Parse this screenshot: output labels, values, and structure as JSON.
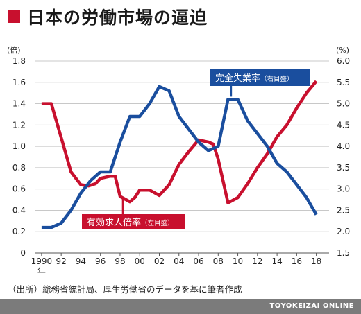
{
  "title": "日本の労働市場の逼迫",
  "source": "（出所）総務省統計局、厚生労働省のデータを基に筆者作成",
  "footer": "TOYOKEIZAI ONLINE",
  "chart_data": {
    "type": "line",
    "left_unit": "(倍)",
    "right_unit": "(%)",
    "year_suffix": "年",
    "left_ylim": [
      0,
      1.8
    ],
    "right_ylim": [
      1.5,
      6.0
    ],
    "left_ticks": [
      "0",
      "0.2",
      "0.4",
      "0.6",
      "0.8",
      "1.0",
      "1.2",
      "1.4",
      "1.6",
      "1.8"
    ],
    "right_ticks": [
      "1.5",
      "2.0",
      "2.5",
      "3.0",
      "3.5",
      "4.0",
      "4.5",
      "5.0",
      "5.5",
      "6.0"
    ],
    "x_ticks": [
      "1990",
      "92",
      "94",
      "96",
      "98",
      "00",
      "02",
      "04",
      "06",
      "08",
      "10",
      "12",
      "14",
      "16",
      "18"
    ],
    "x_tick_years": [
      1990,
      1992,
      1994,
      1996,
      1998,
      2000,
      2002,
      2004,
      2006,
      2008,
      2010,
      2012,
      2014,
      2016,
      2018
    ],
    "xlim": [
      1989.3,
      2019.3
    ],
    "grid": true,
    "series": [
      {
        "name": "有効求人倍率",
        "name_suffix": "（左目盛）",
        "axis": "left",
        "color": "#c8102e",
        "x": [
          1990,
          1991,
          1992,
          1993,
          1994,
          1994.8,
          1995.5,
          1996,
          1997,
          1997.5,
          1998,
          1999,
          1999.5,
          2000,
          2001,
          2002,
          2003,
          2004,
          2005,
          2006,
          2007,
          2007.5,
          2008,
          2009,
          2010,
          2011,
          2012,
          2013,
          2014,
          2015,
          2016,
          2017,
          2018
        ],
        "values": [
          1.4,
          1.4,
          1.08,
          0.76,
          0.64,
          0.63,
          0.65,
          0.7,
          0.72,
          0.72,
          0.53,
          0.48,
          0.52,
          0.59,
          0.59,
          0.54,
          0.64,
          0.83,
          0.95,
          1.06,
          1.04,
          1.02,
          0.88,
          0.47,
          0.52,
          0.65,
          0.8,
          0.93,
          1.09,
          1.2,
          1.36,
          1.5,
          1.61
        ]
      },
      {
        "name": "完全失業率",
        "name_suffix": "（右目盛）",
        "axis": "right",
        "color": "#1a4e9e",
        "x": [
          1990,
          1991,
          1992,
          1993,
          1994,
          1995,
          1996,
          1997,
          1998,
          1999,
          2000,
          2001,
          2002,
          2003,
          2004,
          2005,
          2006,
          2007,
          2008,
          2009,
          2010,
          2011,
          2012,
          2013,
          2014,
          2015,
          2016,
          2017,
          2018
        ],
        "values": [
          2.1,
          2.1,
          2.2,
          2.5,
          2.9,
          3.2,
          3.4,
          3.4,
          4.1,
          4.7,
          4.7,
          5.0,
          5.4,
          5.3,
          4.7,
          4.4,
          4.1,
          3.9,
          4.0,
          5.1,
          5.1,
          4.6,
          4.3,
          4.0,
          3.6,
          3.4,
          3.1,
          2.8,
          2.4
        ]
      }
    ]
  }
}
